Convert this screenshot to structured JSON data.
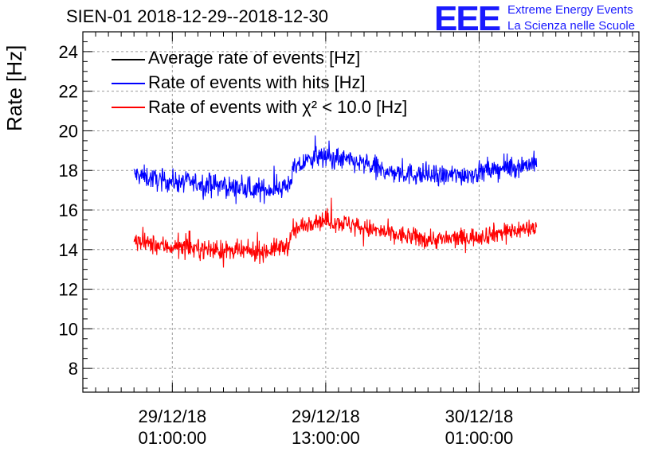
{
  "chart_data": {
    "type": "line",
    "title": "SIEN-01 2018-12-29--2018-12-30",
    "ylabel": "Rate [Hz]",
    "xlabel": "",
    "ylim": [
      6.8,
      25
    ],
    "yticks": [
      8,
      10,
      12,
      14,
      16,
      18,
      20,
      22,
      24
    ],
    "x_range_hours": [
      -6,
      37.5
    ],
    "xticks": [
      {
        "hour": 1,
        "label_line1": "29/12/18",
        "label_line2": "01:00:00"
      },
      {
        "hour": 13,
        "label_line1": "29/12/18",
        "label_line2": "13:00:00"
      },
      {
        "hour": 25,
        "label_line1": "30/12/18",
        "label_line2": "01:00:00"
      }
    ],
    "grid": true,
    "legend_position": "top-left",
    "series": [
      {
        "name": "Average rate of events [Hz]",
        "color": "#000000",
        "values": []
      },
      {
        "name": "Rate of events with hits [Hz]",
        "color": "#0000ff",
        "x_hours": [
          -2.0,
          0,
          2,
          4,
          6,
          8,
          10,
          10.5,
          12,
          14,
          16,
          18,
          20,
          22,
          24,
          26,
          28,
          29.5
        ],
        "values": [
          17.8,
          17.5,
          17.4,
          17.3,
          17.1,
          17.0,
          17.2,
          18.0,
          18.7,
          18.6,
          18.3,
          17.9,
          17.8,
          17.7,
          17.8,
          18.0,
          18.2,
          18.4
        ],
        "noise": 0.5
      },
      {
        "name": "Rate of events with χ² < 10.0 [Hz]",
        "color": "#ff0000",
        "x_hours": [
          -2.0,
          0,
          2,
          4,
          6,
          8,
          10,
          10.5,
          12,
          14,
          16,
          18,
          20,
          22,
          24,
          26,
          28,
          29.5
        ],
        "values": [
          14.4,
          14.2,
          14.1,
          14.0,
          13.9,
          13.9,
          14.2,
          14.9,
          15.5,
          15.4,
          15.1,
          14.8,
          14.6,
          14.5,
          14.6,
          14.8,
          15.0,
          15.1
        ],
        "noise": 0.45
      }
    ]
  },
  "logo": {
    "mark": "EEE",
    "line1": "Extreme Energy Events",
    "line2": "La Scienza nelle Scuole",
    "color": "#1a1aff"
  }
}
